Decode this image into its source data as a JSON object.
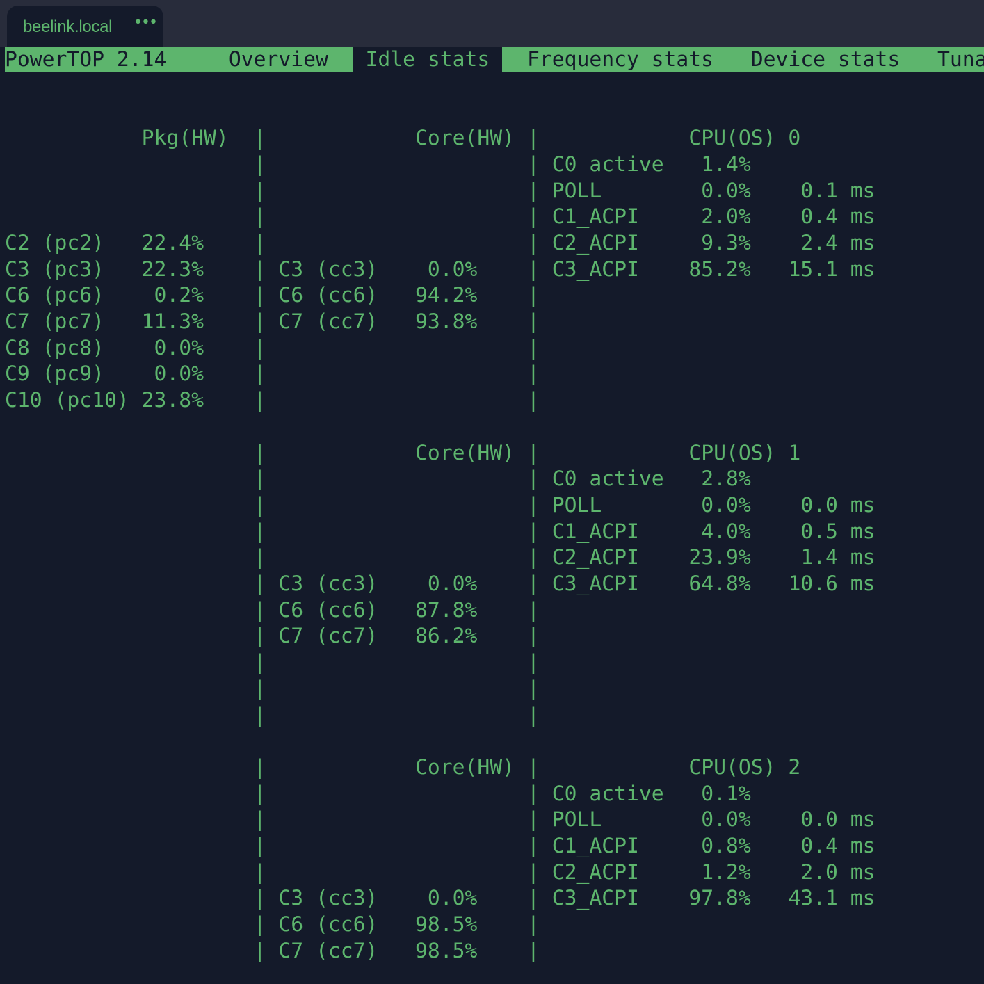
{
  "window": {
    "tab_title": "beelink.local",
    "tab_more": "•••"
  },
  "colors": {
    "fg": "#5db56d",
    "bg": "#141a2a",
    "chrome": "#282c3b"
  },
  "menu": {
    "app": "PowerTOP 2.14",
    "items": [
      {
        "label": "Overview",
        "active": false
      },
      {
        "label": "Idle stats",
        "active": true
      },
      {
        "label": "Frequency stats",
        "active": false
      },
      {
        "label": "Device stats",
        "active": false
      },
      {
        "label": "Tuna",
        "active": false
      }
    ]
  },
  "package": {
    "header": "Pkg(HW)",
    "rows": [
      {
        "state": "C2 (pc2)",
        "value": "22.4%"
      },
      {
        "state": "C3 (pc3)",
        "value": "22.3%"
      },
      {
        "state": "C6 (pc6)",
        "value": "0.2%"
      },
      {
        "state": "C7 (pc7)",
        "value": "11.3%"
      },
      {
        "state": "C8 (pc8)",
        "value": "0.0%"
      },
      {
        "state": "C9 (pc9)",
        "value": "0.0%"
      },
      {
        "state": "C10 (pc10)",
        "value": "23.8%"
      }
    ]
  },
  "blocks": [
    {
      "core_header": "Core(HW)",
      "cpu_header": "CPU(OS) 0",
      "core_rows": [
        {
          "state": "C3 (cc3)",
          "value": "0.0%"
        },
        {
          "state": "C6 (cc6)",
          "value": "94.2%"
        },
        {
          "state": "C7 (cc7)",
          "value": "93.8%"
        }
      ],
      "cpu_rows": [
        {
          "state": "C0 active",
          "value": "1.4%",
          "time": ""
        },
        {
          "state": "POLL",
          "value": "0.0%",
          "time": "0.1 ms"
        },
        {
          "state": "C1_ACPI",
          "value": "2.0%",
          "time": "0.4 ms"
        },
        {
          "state": "C2_ACPI",
          "value": "9.3%",
          "time": "2.4 ms"
        },
        {
          "state": "C3_ACPI",
          "value": "85.2%",
          "time": "15.1 ms"
        }
      ]
    },
    {
      "core_header": "Core(HW)",
      "cpu_header": "CPU(OS) 1",
      "core_rows": [
        {
          "state": "C3 (cc3)",
          "value": "0.0%"
        },
        {
          "state": "C6 (cc6)",
          "value": "87.8%"
        },
        {
          "state": "C7 (cc7)",
          "value": "86.2%"
        }
      ],
      "cpu_rows": [
        {
          "state": "C0 active",
          "value": "2.8%",
          "time": ""
        },
        {
          "state": "POLL",
          "value": "0.0%",
          "time": "0.0 ms"
        },
        {
          "state": "C1_ACPI",
          "value": "4.0%",
          "time": "0.5 ms"
        },
        {
          "state": "C2_ACPI",
          "value": "23.9%",
          "time": "1.4 ms"
        },
        {
          "state": "C3_ACPI",
          "value": "64.8%",
          "time": "10.6 ms"
        }
      ]
    },
    {
      "core_header": "Core(HW)",
      "cpu_header": "CPU(OS) 2",
      "core_rows": [
        {
          "state": "C3 (cc3)",
          "value": "0.0%"
        },
        {
          "state": "C6 (cc6)",
          "value": "98.5%"
        },
        {
          "state": "C7 (cc7)",
          "value": "98.5%"
        }
      ],
      "cpu_rows": [
        {
          "state": "C0 active",
          "value": "0.1%",
          "time": ""
        },
        {
          "state": "POLL",
          "value": "0.0%",
          "time": "0.0 ms"
        },
        {
          "state": "C1_ACPI",
          "value": "0.8%",
          "time": "0.4 ms"
        },
        {
          "state": "C2_ACPI",
          "value": "1.2%",
          "time": "2.0 ms"
        },
        {
          "state": "C3_ACPI",
          "value": "97.8%",
          "time": "43.1 ms"
        }
      ]
    }
  ]
}
